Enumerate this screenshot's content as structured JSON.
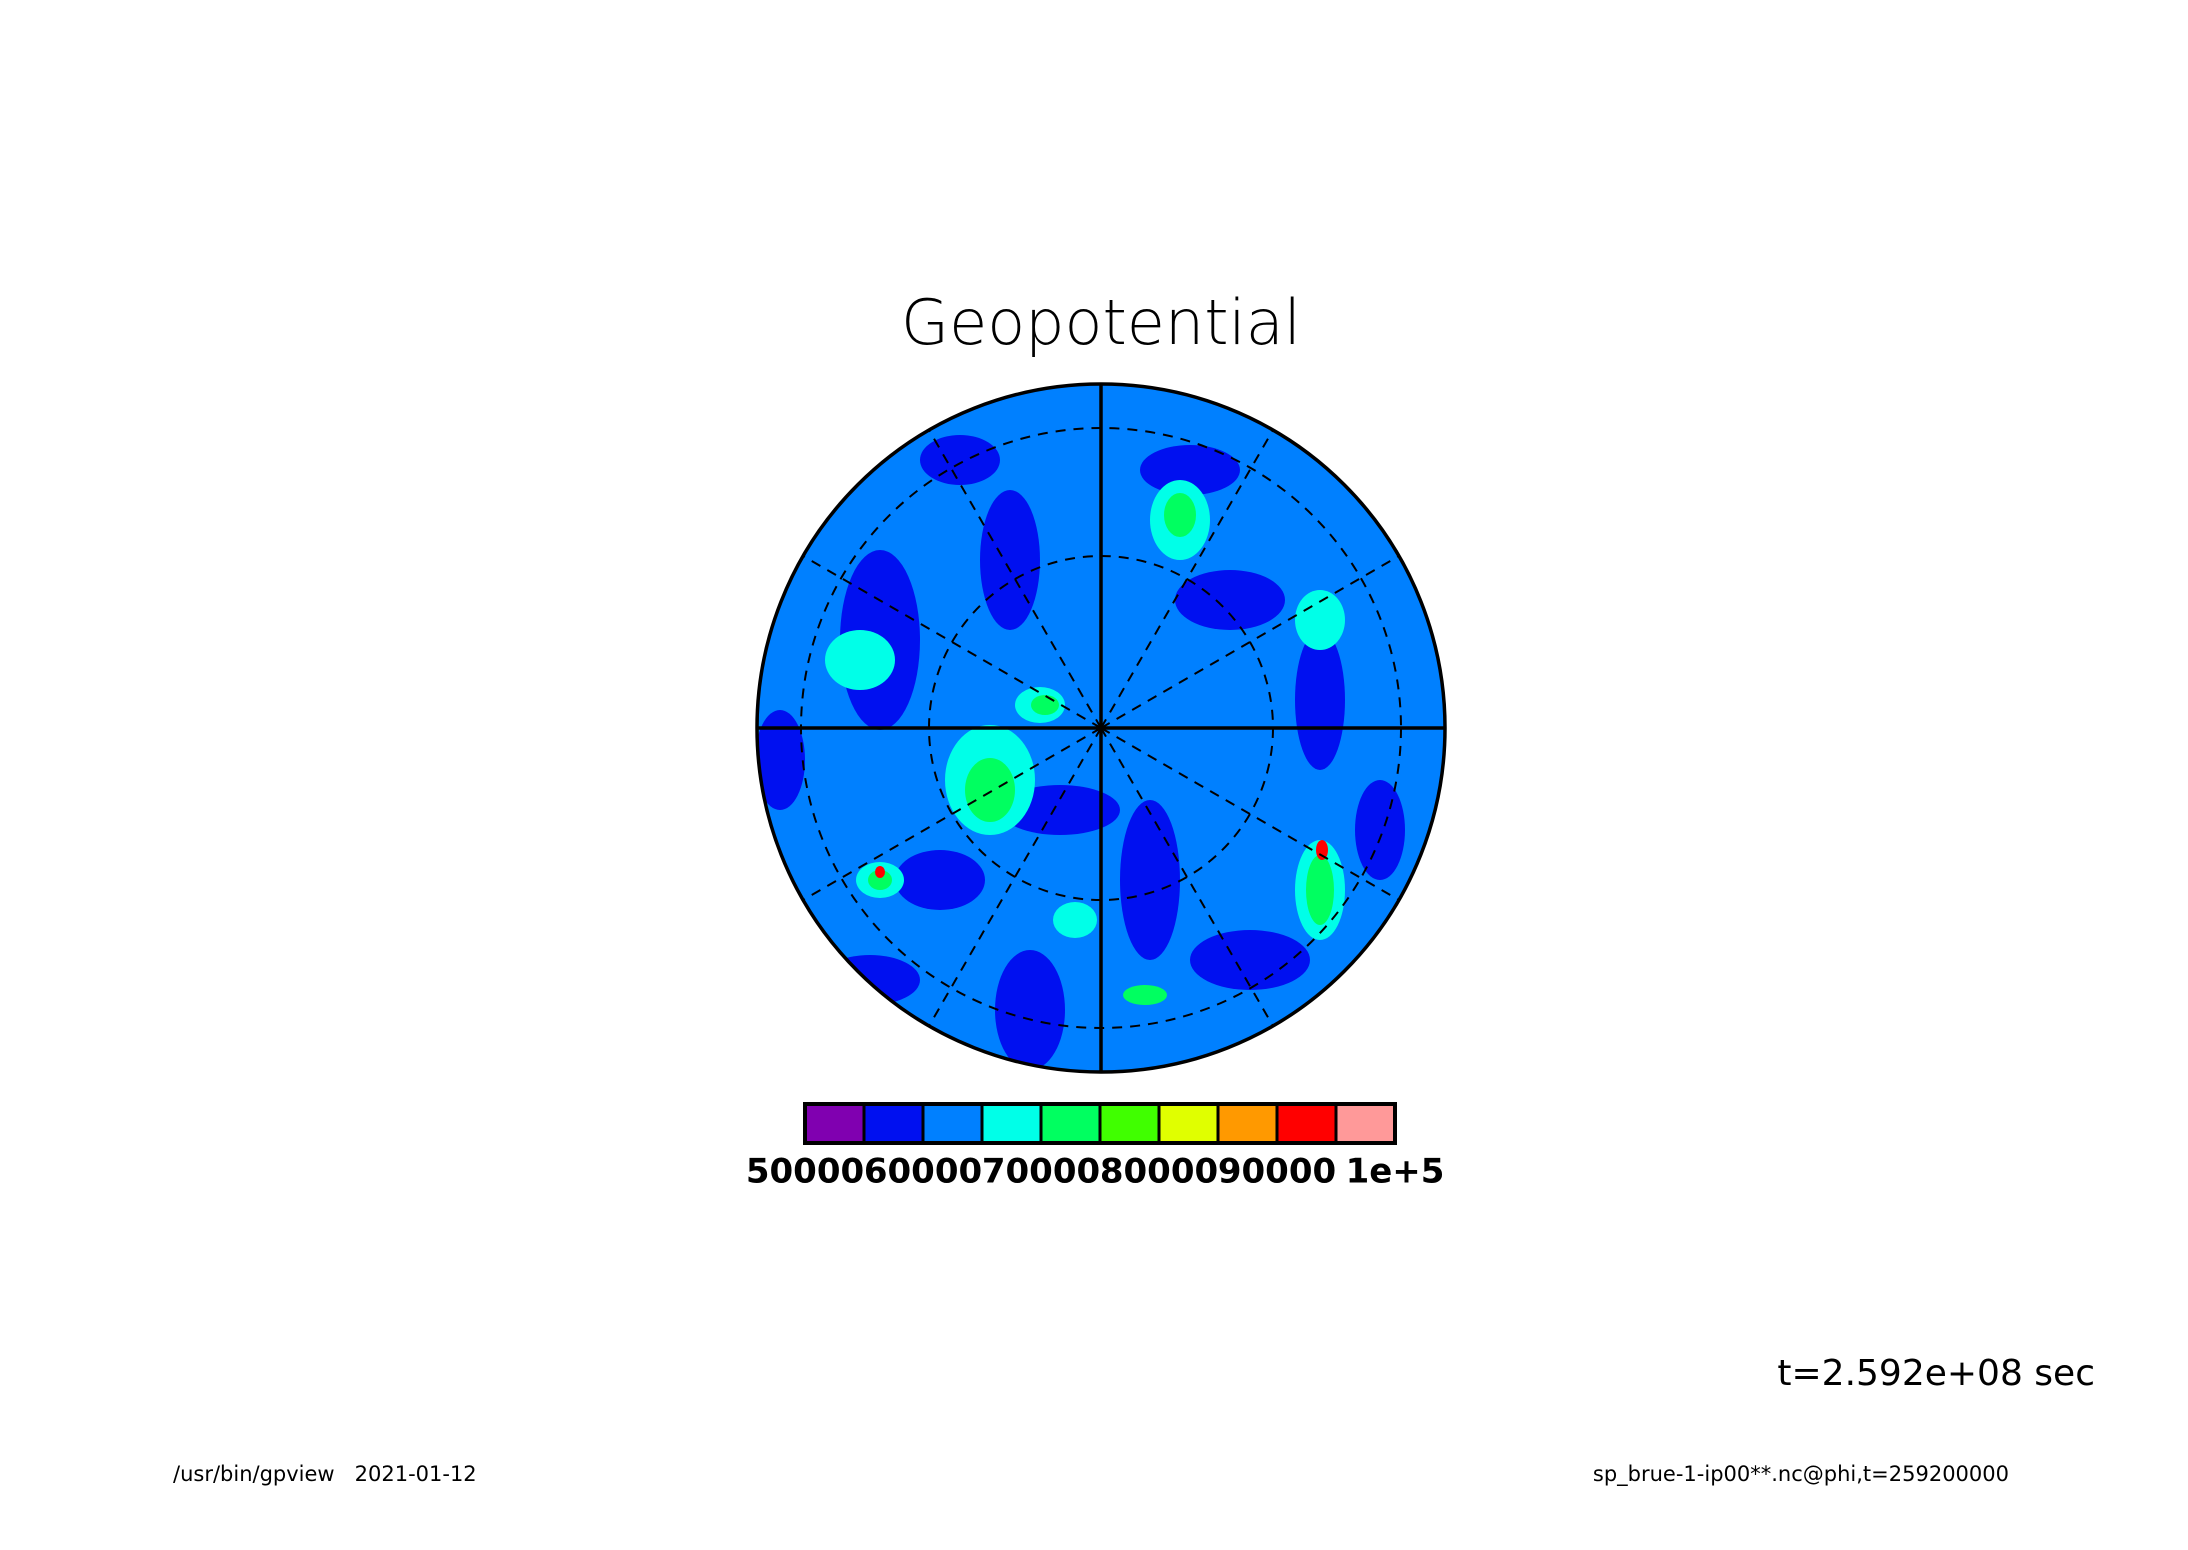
{
  "chart_data": {
    "type": "polar-contour",
    "title": "Geopotential",
    "annotation": "t=2.592e+08 sec",
    "footer_left": "/usr/bin/gpview   2021-01-12",
    "footer_right": "sp_brue-1-ip00**.nc@phi,t=259200000",
    "colorbar": {
      "colors": [
        "#8000b0",
        "#0010f0",
        "#0080ff",
        "#00ffe8",
        "#00ff60",
        "#40ff00",
        "#e0ff00",
        "#ff9900",
        "#ff0000",
        "#ff9999"
      ],
      "lim": [
        50000,
        100000
      ],
      "ticks": [
        50000,
        60000,
        70000,
        80000,
        90000,
        {
          "value": 100000,
          "label": "1e+5"
        }
      ]
    }
  }
}
